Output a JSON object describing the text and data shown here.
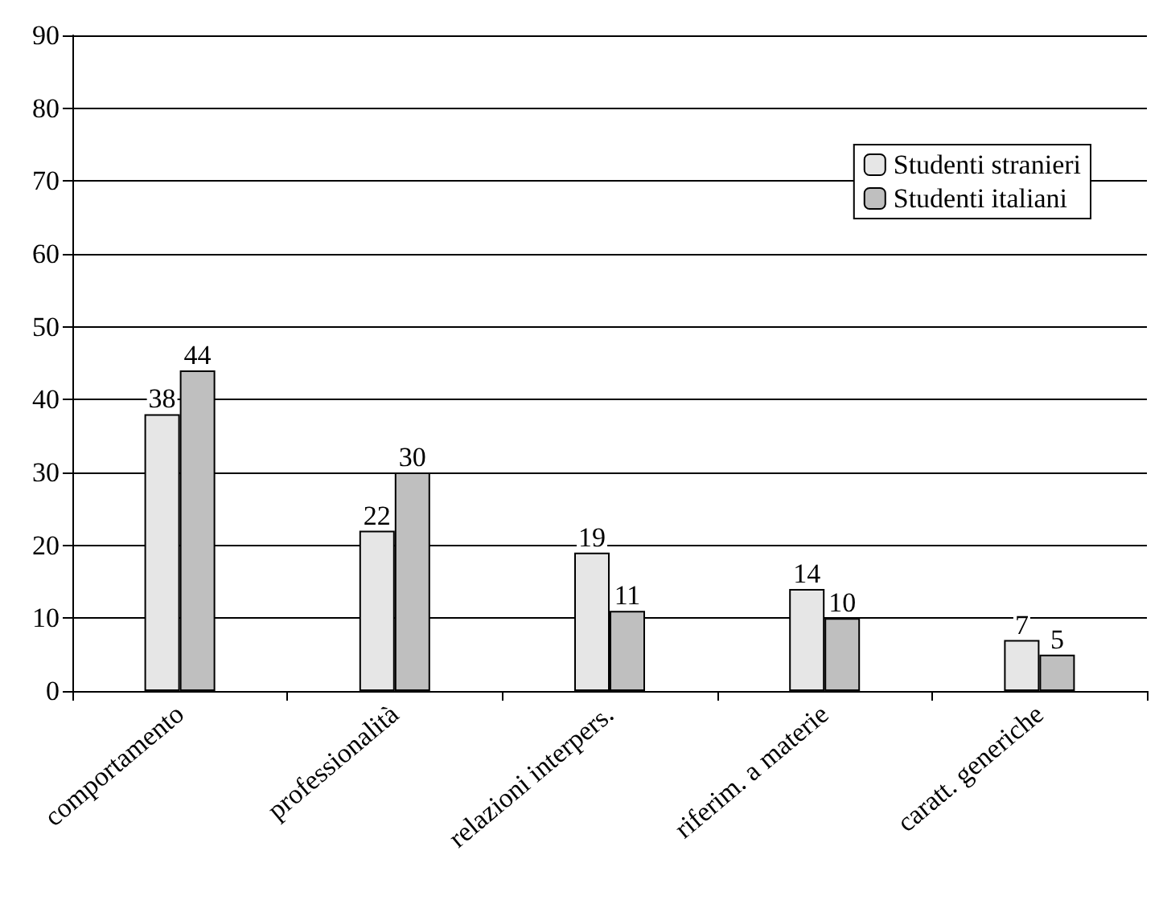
{
  "chart_data": {
    "type": "bar",
    "categories": [
      "comportamento",
      "professionalità",
      "relazioni interpers.",
      "riferim. a materie",
      "caratt. generiche"
    ],
    "series": [
      {
        "name": "Studenti stranieri",
        "color": "#e6e6e6",
        "values": [
          38,
          22,
          19,
          14,
          7
        ]
      },
      {
        "name": "Studenti italiani",
        "color": "#bfbfbf",
        "values": [
          44,
          30,
          11,
          10,
          5
        ]
      }
    ],
    "ylim": [
      0,
      90
    ],
    "yticks": [
      0,
      10,
      20,
      30,
      40,
      50,
      60,
      70,
      80,
      90
    ],
    "grid": "y",
    "legend": "top right",
    "data_labels": true
  }
}
